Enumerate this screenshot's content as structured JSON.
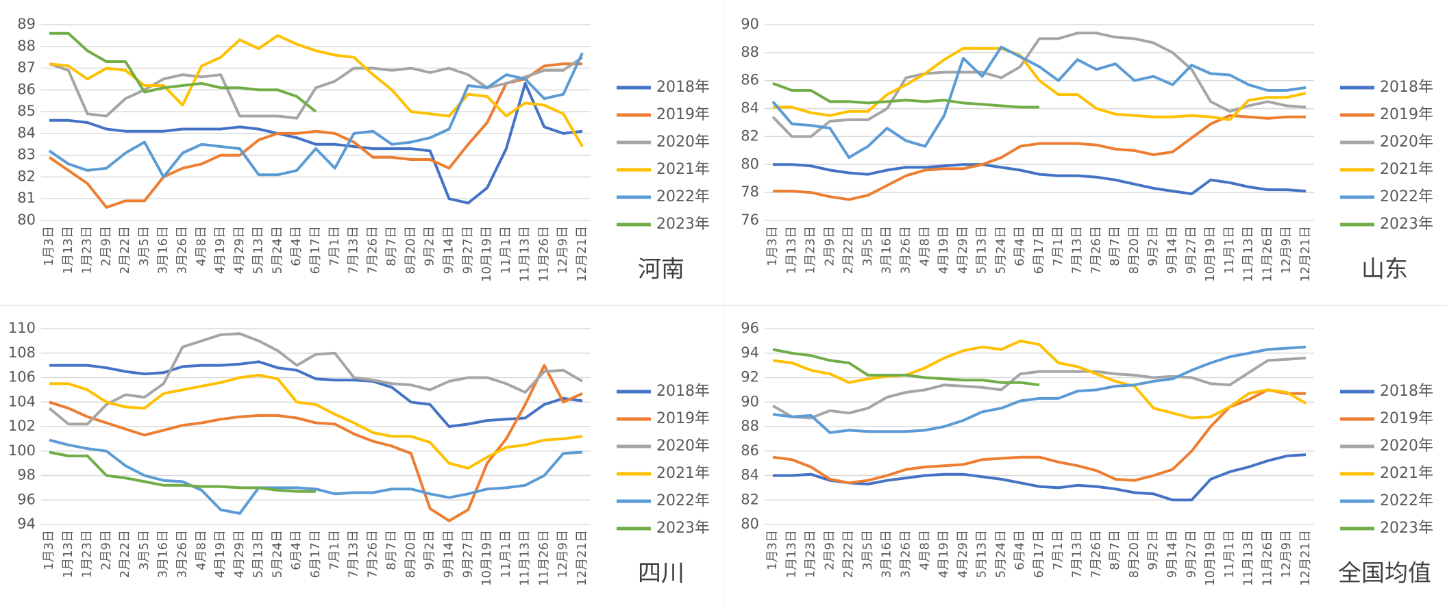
{
  "chart_data": [
    {
      "type": "line",
      "title": "河南",
      "legend": "right",
      "grid": true,
      "categories": [
        "1月3日",
        "1月13日",
        "1月23日",
        "2月9日",
        "2月22日",
        "3月5日",
        "3月16日",
        "3月26日",
        "4月8日",
        "4月19日",
        "4月29日",
        "5月13日",
        "5月24日",
        "6月4日",
        "6月17日",
        "7月1日",
        "7月13日",
        "7月26日",
        "8月7日",
        "8月20日",
        "9月2日",
        "9月14日",
        "9月27日",
        "10月19日",
        "11月1日",
        "11月13日",
        "11月26日",
        "12月9日",
        "12月21日"
      ],
      "ylim": [
        80,
        89
      ],
      "yticks": [
        80,
        81,
        82,
        83,
        84,
        85,
        86,
        87,
        88,
        89
      ],
      "series": [
        {
          "name": "2018年",
          "color": "#4472c4",
          "values": [
            84.6,
            84.6,
            84.5,
            84.2,
            84.1,
            84.1,
            84.1,
            84.2,
            84.2,
            84.2,
            84.3,
            84.2,
            84.0,
            83.8,
            83.5,
            83.5,
            83.4,
            83.3,
            83.3,
            83.3,
            83.2,
            81.0,
            80.8,
            81.5,
            83.3,
            86.3,
            84.3,
            84.0,
            84.1
          ]
        },
        {
          "name": "2019年",
          "color": "#ed7d31",
          "values": [
            82.9,
            82.3,
            81.7,
            80.6,
            80.9,
            80.9,
            82.0,
            82.4,
            82.6,
            83.0,
            83.0,
            83.7,
            84.0,
            84.0,
            84.1,
            84.0,
            83.6,
            82.9,
            82.9,
            82.8,
            82.8,
            82.4,
            83.5,
            84.5,
            86.3,
            86.5,
            87.1,
            87.2,
            87.2
          ]
        },
        {
          "name": "2020年",
          "color": "#a5a5a5",
          "values": [
            87.2,
            86.9,
            84.9,
            84.8,
            85.6,
            86.0,
            86.5,
            86.7,
            86.6,
            86.7,
            84.8,
            84.8,
            84.8,
            84.7,
            86.1,
            86.4,
            87.0,
            87.0,
            86.9,
            87.0,
            86.8,
            87.0,
            86.7,
            86.1,
            86.3,
            86.6,
            86.9,
            86.9,
            87.5
          ]
        },
        {
          "name": "2021年",
          "color": "#ffc000",
          "values": [
            87.2,
            87.1,
            86.5,
            87.0,
            86.9,
            86.2,
            86.2,
            85.3,
            87.1,
            87.5,
            88.3,
            87.9,
            88.5,
            88.1,
            87.8,
            87.6,
            87.5,
            86.7,
            86.0,
            85.0,
            84.9,
            84.8,
            85.8,
            85.7,
            84.8,
            85.4,
            85.3,
            84.9,
            83.4
          ]
        },
        {
          "name": "2022年",
          "color": "#5b9bd5",
          "values": [
            83.2,
            82.6,
            82.3,
            82.4,
            83.1,
            83.6,
            82.0,
            83.1,
            83.5,
            83.4,
            83.3,
            82.1,
            82.1,
            82.3,
            83.3,
            82.4,
            84.0,
            84.1,
            83.5,
            83.6,
            83.8,
            84.2,
            86.2,
            86.1,
            86.7,
            86.5,
            85.6,
            85.8,
            87.7
          ]
        },
        {
          "name": "2023年",
          "color": "#70ad47",
          "values": [
            88.6,
            88.6,
            87.8,
            87.3,
            87.3,
            85.9,
            86.1,
            86.2,
            86.3,
            86.1,
            86.1,
            86.0,
            86.0,
            85.7,
            85.0,
            null,
            null,
            null,
            null,
            null,
            null,
            null,
            null,
            null,
            null,
            null,
            null,
            null,
            null
          ]
        }
      ]
    },
    {
      "type": "line",
      "title": "山东",
      "legend": "right",
      "grid": true,
      "categories": [
        "1月3日",
        "1月13日",
        "1月23日",
        "2月9日",
        "2月22日",
        "3月5日",
        "3月16日",
        "3月26日",
        "4月8日",
        "4月19日",
        "4月29日",
        "5月13日",
        "5月24日",
        "6月4日",
        "6月17日",
        "7月1日",
        "7月13日",
        "7月26日",
        "8月7日",
        "8月20日",
        "9月2日",
        "9月14日",
        "9月27日",
        "10月19日",
        "11月1日",
        "11月13日",
        "11月26日",
        "12月9日",
        "12月21日"
      ],
      "ylim": [
        76,
        90
      ],
      "yticks": [
        76,
        78,
        80,
        82,
        84,
        86,
        88,
        90
      ],
      "series": [
        {
          "name": "2018年",
          "color": "#4472c4",
          "values": [
            80.0,
            80.0,
            79.9,
            79.6,
            79.4,
            79.3,
            79.6,
            79.8,
            79.8,
            79.9,
            80.0,
            80.0,
            79.8,
            79.6,
            79.3,
            79.2,
            79.2,
            79.1,
            78.9,
            78.6,
            78.3,
            78.1,
            77.9,
            78.9,
            78.7,
            78.4,
            78.2,
            78.2,
            78.1
          ]
        },
        {
          "name": "2019年",
          "color": "#ed7d31",
          "values": [
            78.1,
            78.1,
            78.0,
            77.7,
            77.5,
            77.8,
            78.5,
            79.2,
            79.6,
            79.7,
            79.7,
            80.0,
            80.5,
            81.3,
            81.5,
            81.5,
            81.5,
            81.4,
            81.1,
            81.0,
            80.7,
            80.9,
            81.9,
            82.9,
            83.5,
            83.4,
            83.3,
            83.4,
            83.4
          ]
        },
        {
          "name": "2020年",
          "color": "#a5a5a5",
          "values": [
            83.4,
            82.0,
            82.0,
            83.1,
            83.2,
            83.2,
            84.0,
            86.2,
            86.5,
            86.6,
            86.6,
            86.6,
            86.2,
            87.0,
            89.0,
            89.0,
            89.4,
            89.4,
            89.1,
            89.0,
            88.7,
            88.0,
            86.8,
            84.5,
            83.8,
            84.2,
            84.5,
            84.2,
            84.1
          ]
        },
        {
          "name": "2021年",
          "color": "#ffc000",
          "values": [
            84.1,
            84.1,
            83.7,
            83.5,
            83.8,
            83.8,
            85.0,
            85.7,
            86.5,
            87.5,
            88.3,
            88.3,
            88.3,
            87.8,
            86.0,
            85.0,
            85.0,
            84.0,
            83.6,
            83.5,
            83.4,
            83.4,
            83.5,
            83.4,
            83.2,
            84.6,
            84.8,
            84.8,
            85.1
          ]
        },
        {
          "name": "2022年",
          "color": "#5b9bd5",
          "values": [
            84.5,
            82.9,
            82.8,
            82.6,
            80.5,
            81.3,
            82.6,
            81.7,
            81.3,
            83.5,
            87.6,
            86.3,
            88.4,
            87.7,
            87.0,
            86.0,
            87.5,
            86.8,
            87.2,
            86.0,
            86.3,
            85.7,
            87.1,
            86.5,
            86.4,
            85.7,
            85.3,
            85.3,
            85.5
          ]
        },
        {
          "name": "2023年",
          "color": "#70ad47",
          "values": [
            85.8,
            85.3,
            85.3,
            84.5,
            84.5,
            84.4,
            84.5,
            84.6,
            84.5,
            84.6,
            84.4,
            84.3,
            84.2,
            84.1,
            84.1,
            null,
            null,
            null,
            null,
            null,
            null,
            null,
            null,
            null,
            null,
            null,
            null,
            null,
            null
          ]
        }
      ]
    },
    {
      "type": "line",
      "title": "四川",
      "legend": "right",
      "grid": true,
      "categories": [
        "1月3日",
        "1月13日",
        "1月23日",
        "2月9日",
        "2月22日",
        "3月5日",
        "3月16日",
        "3月26日",
        "4月8日",
        "4月19日",
        "4月29日",
        "5月13日",
        "5月24日",
        "6月4日",
        "6月17日",
        "7月1日",
        "7月13日",
        "7月26日",
        "8月7日",
        "8月20日",
        "9月2日",
        "9月14日",
        "9月27日",
        "10月19日",
        "11月1日",
        "11月13日",
        "11月26日",
        "12月9日",
        "12月21日"
      ],
      "ylim": [
        94,
        110
      ],
      "yticks": [
        94,
        96,
        98,
        100,
        102,
        104,
        106,
        108,
        110
      ],
      "series": [
        {
          "name": "2018年",
          "color": "#4472c4",
          "values": [
            107.0,
            107.0,
            107.0,
            106.8,
            106.5,
            106.3,
            106.4,
            106.9,
            107.0,
            107.0,
            107.1,
            107.3,
            106.8,
            106.6,
            105.9,
            105.8,
            105.8,
            105.7,
            105.2,
            104.0,
            103.8,
            102.0,
            102.2,
            102.5,
            102.6,
            102.7,
            103.8,
            104.3,
            104.1
          ]
        },
        {
          "name": "2019年",
          "color": "#ed7d31",
          "values": [
            104.0,
            103.5,
            102.8,
            102.3,
            101.8,
            101.3,
            101.7,
            102.1,
            102.3,
            102.6,
            102.8,
            102.9,
            102.9,
            102.7,
            102.3,
            102.2,
            101.4,
            100.8,
            100.4,
            99.8,
            95.3,
            94.3,
            95.2,
            99.0,
            101.0,
            103.8,
            107.0,
            104.0,
            104.7
          ]
        },
        {
          "name": "2020年",
          "color": "#a5a5a5",
          "values": [
            103.5,
            102.2,
            102.2,
            103.8,
            104.6,
            104.4,
            105.5,
            108.5,
            109.0,
            109.5,
            109.6,
            109.0,
            108.2,
            107.0,
            107.9,
            108.0,
            106.0,
            105.8,
            105.5,
            105.4,
            105.0,
            105.7,
            106.0,
            106.0,
            105.5,
            104.8,
            106.5,
            106.6,
            105.7
          ]
        },
        {
          "name": "2021年",
          "color": "#ffc000",
          "values": [
            105.5,
            105.5,
            105.0,
            104.0,
            103.6,
            103.5,
            104.7,
            105.0,
            105.3,
            105.6,
            106.0,
            106.2,
            105.9,
            104.0,
            103.8,
            103.0,
            102.3,
            101.5,
            101.2,
            101.2,
            100.7,
            99.0,
            98.6,
            99.5,
            100.3,
            100.5,
            100.9,
            101.0,
            101.2
          ]
        },
        {
          "name": "2022年",
          "color": "#5b9bd5",
          "values": [
            100.9,
            100.5,
            100.2,
            100.0,
            98.8,
            98.0,
            97.6,
            97.5,
            96.8,
            95.2,
            94.9,
            97.0,
            97.0,
            97.0,
            96.9,
            96.5,
            96.6,
            96.6,
            96.9,
            96.9,
            96.5,
            96.2,
            96.5,
            96.9,
            97.0,
            97.2,
            98.0,
            99.8,
            99.9
          ]
        },
        {
          "name": "2023年",
          "color": "#70ad47",
          "values": [
            99.9,
            99.6,
            99.6,
            98.0,
            97.8,
            97.5,
            97.2,
            97.2,
            97.1,
            97.1,
            97.0,
            97.0,
            96.8,
            96.7,
            96.7,
            null,
            null,
            null,
            null,
            null,
            null,
            null,
            null,
            null,
            null,
            null,
            null,
            null,
            null
          ]
        }
      ]
    },
    {
      "type": "line",
      "title": "全国均值",
      "legend": "right",
      "grid": true,
      "categories": [
        "1月3日",
        "1月13日",
        "1月23日",
        "2月9日",
        "2月22日",
        "3月5日",
        "3月16日",
        "3月26日",
        "4月8日",
        "4月19日",
        "4月29日",
        "5月13日",
        "5月24日",
        "6月4日",
        "6月17日",
        "7月1日",
        "7月13日",
        "7月26日",
        "8月7日",
        "8月20日",
        "9月2日",
        "9月14日",
        "9月27日",
        "10月19日",
        "11月1日",
        "11月13日",
        "11月26日",
        "12月9日",
        "12月21日"
      ],
      "ylim": [
        80,
        96
      ],
      "yticks": [
        80,
        82,
        84,
        86,
        88,
        90,
        92,
        94,
        96
      ],
      "series": [
        {
          "name": "2018年",
          "color": "#4472c4",
          "values": [
            84.0,
            84.0,
            84.1,
            83.6,
            83.4,
            83.3,
            83.6,
            83.8,
            84.0,
            84.1,
            84.1,
            83.9,
            83.7,
            83.4,
            83.1,
            83.0,
            83.2,
            83.1,
            82.9,
            82.6,
            82.5,
            82.0,
            82.0,
            83.7,
            84.3,
            84.7,
            85.2,
            85.6,
            85.7
          ]
        },
        {
          "name": "2019年",
          "color": "#ed7d31",
          "values": [
            85.5,
            85.3,
            84.7,
            83.7,
            83.4,
            83.6,
            84.0,
            84.5,
            84.7,
            84.8,
            84.9,
            85.3,
            85.4,
            85.5,
            85.5,
            85.1,
            84.8,
            84.4,
            83.7,
            83.6,
            84.0,
            84.5,
            86.0,
            88.0,
            89.6,
            90.2,
            91.0,
            90.7,
            90.7
          ]
        },
        {
          "name": "2020年",
          "color": "#a5a5a5",
          "values": [
            89.7,
            88.8,
            88.7,
            89.3,
            89.1,
            89.5,
            90.4,
            90.8,
            91.0,
            91.4,
            91.3,
            91.2,
            91.0,
            92.3,
            92.5,
            92.5,
            92.5,
            92.5,
            92.3,
            92.2,
            92.0,
            92.1,
            92.0,
            91.5,
            91.4,
            92.4,
            93.4,
            93.5,
            93.6
          ]
        },
        {
          "name": "2021年",
          "color": "#ffc000",
          "values": [
            93.4,
            93.2,
            92.6,
            92.3,
            91.6,
            91.9,
            92.1,
            92.2,
            92.8,
            93.6,
            94.2,
            94.5,
            94.3,
            95.0,
            94.7,
            93.2,
            92.9,
            92.3,
            91.7,
            91.3,
            89.5,
            89.1,
            88.7,
            88.8,
            89.6,
            90.7,
            91.0,
            90.8,
            89.9
          ]
        },
        {
          "name": "2022年",
          "color": "#5b9bd5",
          "values": [
            89.0,
            88.8,
            88.9,
            87.5,
            87.7,
            87.6,
            87.6,
            87.6,
            87.7,
            88.0,
            88.5,
            89.2,
            89.5,
            90.1,
            90.3,
            90.3,
            90.9,
            91.0,
            91.3,
            91.4,
            91.7,
            91.9,
            92.6,
            93.2,
            93.7,
            94.0,
            94.3,
            94.4,
            94.5
          ]
        },
        {
          "name": "2023年",
          "color": "#70ad47",
          "values": [
            94.3,
            94.0,
            93.8,
            93.4,
            93.2,
            92.2,
            92.2,
            92.2,
            92.0,
            91.9,
            91.8,
            91.8,
            91.6,
            91.6,
            91.4,
            null,
            null,
            null,
            null,
            null,
            null,
            null,
            null,
            null,
            null,
            null,
            null,
            null,
            null
          ]
        }
      ]
    }
  ]
}
